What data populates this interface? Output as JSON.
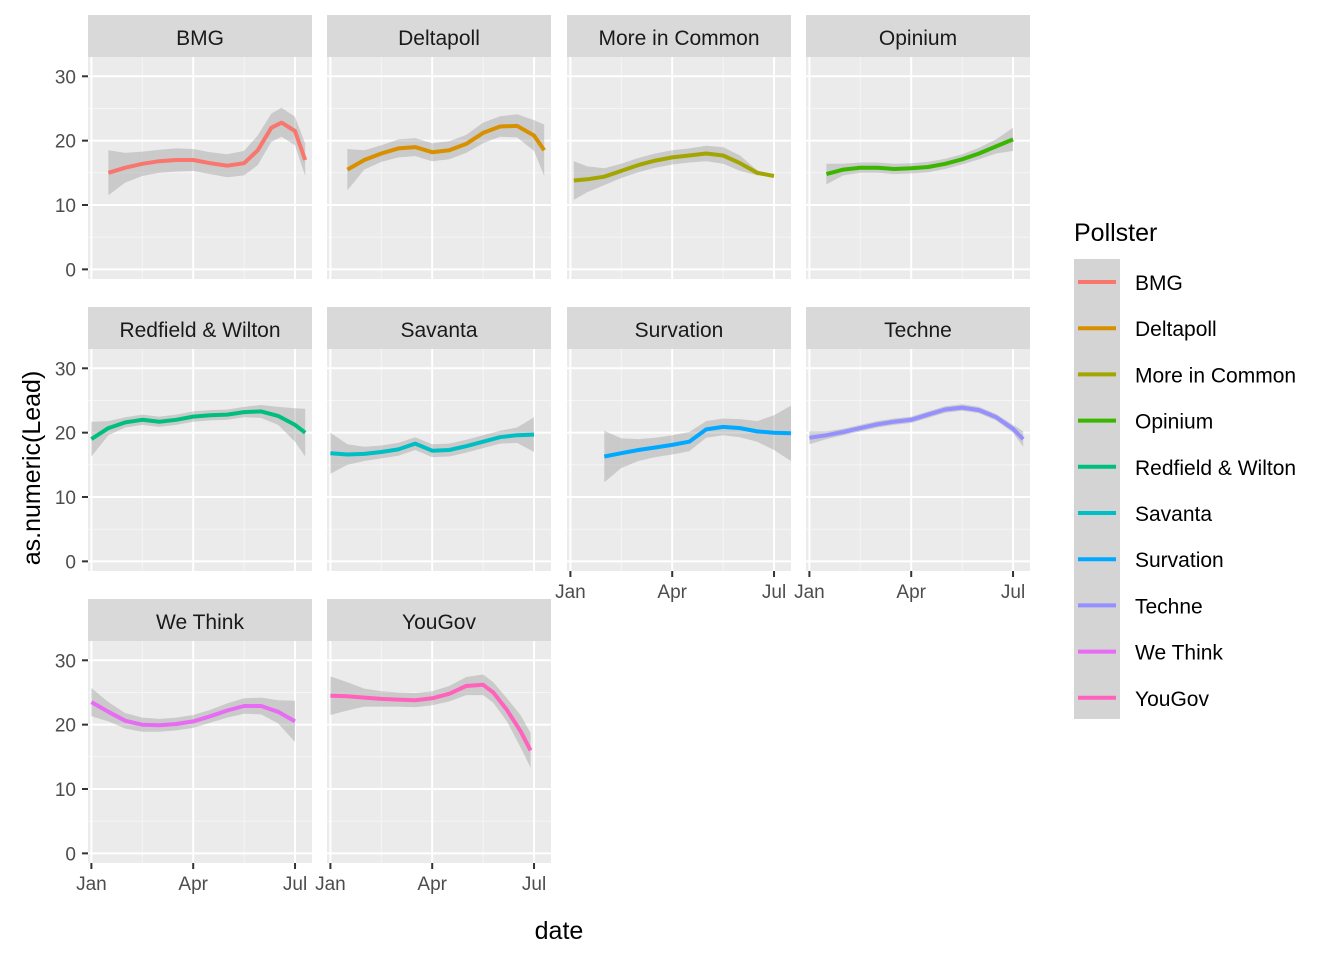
{
  "chart_data": {
    "type": "line",
    "xlabel": "date",
    "ylabel": "as.numeric(Lead)",
    "x_ticks": [
      "Jan",
      "Apr",
      "Jul"
    ],
    "y_ticks": [
      0,
      10,
      20,
      30
    ],
    "ylim": [
      -1.5,
      33
    ],
    "xlim_months": [
      0.9,
      7.5
    ],
    "grid": true,
    "legend": {
      "title": "Pollster",
      "placement": "right"
    },
    "facets_per_row": 4,
    "series": [
      {
        "name": "BMG",
        "color": "#F8766D",
        "x": [
          1.5,
          2.0,
          2.5,
          3.0,
          3.5,
          4.0,
          4.5,
          5.0,
          5.5,
          5.9,
          6.3,
          6.6,
          7.0,
          7.3
        ],
        "y": [
          15,
          15.8,
          16.4,
          16.8,
          17,
          17,
          16.5,
          16.1,
          16.5,
          18.5,
          22,
          22.8,
          21.5,
          17
        ],
        "lower": [
          11.5,
          13.5,
          14.5,
          15,
          15.2,
          15.3,
          14.8,
          14.3,
          14.6,
          16.2,
          19.8,
          20.6,
          19.3,
          14.5
        ],
        "upper": [
          18.5,
          18.1,
          18.3,
          18.6,
          18.8,
          18.7,
          18.2,
          17.9,
          18.4,
          20.8,
          24.2,
          25.1,
          23.7,
          19.5
        ]
      },
      {
        "name": "Deltapoll",
        "color": "#D89000",
        "x": [
          1.5,
          2.0,
          2.5,
          3.0,
          3.5,
          4.0,
          4.5,
          5.0,
          5.5,
          6.0,
          6.5,
          7.0,
          7.3
        ],
        "y": [
          15.5,
          17,
          18,
          18.8,
          19,
          18.2,
          18.5,
          19.5,
          21.2,
          22.2,
          22.3,
          20.8,
          18.5
        ],
        "lower": [
          12.3,
          15.5,
          16.7,
          17.4,
          17.6,
          16.8,
          17.1,
          18.1,
          19.6,
          20.6,
          20.5,
          18.4,
          14.5
        ],
        "upper": [
          18.7,
          18.5,
          19.3,
          20.2,
          20.4,
          19.6,
          19.9,
          20.9,
          22.8,
          23.8,
          24.1,
          23.2,
          22.5
        ]
      },
      {
        "name": "More in Common",
        "color": "#A3A500",
        "x": [
          1.1,
          1.5,
          2.0,
          2.5,
          3.0,
          3.5,
          4.0,
          4.5,
          5.0,
          5.5,
          6.0,
          6.5,
          7.0
        ],
        "y": [
          13.8,
          14,
          14.4,
          15.3,
          16.2,
          16.9,
          17.4,
          17.7,
          18.0,
          17.7,
          16.5,
          15,
          14.5
        ],
        "lower": [
          10.8,
          12,
          13.1,
          14.2,
          15.1,
          15.8,
          16.3,
          16.6,
          16.8,
          16.4,
          15.3,
          14.6,
          14.5
        ],
        "upper": [
          16.8,
          16,
          15.7,
          16.4,
          17.3,
          18,
          18.5,
          18.8,
          19.2,
          19.0,
          17.7,
          15.4,
          14.5
        ]
      },
      {
        "name": "Opinium",
        "color": "#39B600",
        "x": [
          1.5,
          2.0,
          2.5,
          3.0,
          3.5,
          4.0,
          4.5,
          5.0,
          5.5,
          6.0,
          6.5,
          7.0
        ],
        "y": [
          14.8,
          15.5,
          15.8,
          15.8,
          15.6,
          15.7,
          15.9,
          16.4,
          17.1,
          18.0,
          19.1,
          20.2
        ],
        "lower": [
          13.2,
          14.6,
          15.0,
          15.0,
          14.8,
          14.9,
          15.1,
          15.6,
          16.3,
          17.1,
          18.0,
          18.4
        ],
        "upper": [
          16.4,
          16.4,
          16.6,
          16.6,
          16.4,
          16.5,
          16.7,
          17.2,
          17.9,
          18.9,
          20.2,
          22.0
        ]
      },
      {
        "name": "Redfield & Wilton",
        "color": "#00BF7D",
        "x": [
          1.0,
          1.5,
          2.0,
          2.5,
          3.0,
          3.5,
          4.0,
          4.5,
          5.0,
          5.5,
          6.0,
          6.5,
          7.0,
          7.3
        ],
        "y": [
          19,
          20.7,
          21.6,
          22.0,
          21.7,
          22.0,
          22.5,
          22.7,
          22.8,
          23.2,
          23.3,
          22.6,
          21.2,
          20
        ],
        "lower": [
          16.3,
          19.6,
          20.8,
          21.2,
          20.9,
          21.2,
          21.7,
          21.9,
          22.0,
          22.4,
          22.3,
          21.2,
          18.6,
          16.3
        ],
        "upper": [
          21.7,
          21.8,
          22.4,
          22.8,
          22.5,
          22.8,
          23.3,
          23.5,
          23.6,
          24.0,
          24.3,
          24.0,
          23.8,
          23.7
        ]
      },
      {
        "name": "Savanta",
        "color": "#00BFC4",
        "x": [
          1.0,
          1.5,
          2.0,
          2.5,
          3.0,
          3.5,
          4.0,
          4.5,
          5.0,
          5.5,
          6.0,
          6.5,
          7.0
        ],
        "y": [
          16.8,
          16.6,
          16.7,
          17.0,
          17.4,
          18.3,
          17.2,
          17.3,
          17.9,
          18.6,
          19.3,
          19.6,
          19.7
        ],
        "lower": [
          13.6,
          15.0,
          15.6,
          16.0,
          16.4,
          17.3,
          16.2,
          16.3,
          16.9,
          17.6,
          18.3,
          18.4,
          17.0
        ],
        "upper": [
          20.0,
          18.2,
          17.8,
          18.0,
          18.4,
          19.3,
          18.2,
          18.3,
          18.9,
          19.6,
          20.3,
          20.8,
          22.4
        ]
      },
      {
        "name": "Survation",
        "color": "#00A9FF",
        "x": [
          2.0,
          2.5,
          3.0,
          3.5,
          4.0,
          4.5,
          5.0,
          5.5,
          6.0,
          6.5,
          7.0,
          7.5
        ],
        "y": [
          16.3,
          16.8,
          17.3,
          17.7,
          18.1,
          18.6,
          20.5,
          20.9,
          20.7,
          20.2,
          20.0,
          19.9
        ],
        "lower": [
          12.3,
          14.5,
          15.6,
          16.2,
          16.6,
          17.1,
          19.2,
          19.6,
          19.3,
          18.6,
          17.3,
          15.6
        ],
        "upper": [
          20.3,
          19.1,
          19.0,
          19.2,
          19.6,
          20.1,
          21.8,
          22.2,
          22.1,
          21.8,
          22.7,
          24.2
        ]
      },
      {
        "name": "Techne",
        "color": "#9590FF",
        "x": [
          1.0,
          1.5,
          2.0,
          2.5,
          3.0,
          3.5,
          4.0,
          4.5,
          5.0,
          5.5,
          6.0,
          6.5,
          7.0,
          7.3
        ],
        "y": [
          19.2,
          19.6,
          20.1,
          20.7,
          21.3,
          21.7,
          22.0,
          22.8,
          23.6,
          23.9,
          23.5,
          22.4,
          20.6,
          19
        ],
        "lower": [
          18.2,
          19.0,
          19.6,
          20.2,
          20.8,
          21.2,
          21.5,
          22.3,
          23.1,
          23.4,
          23.0,
          21.9,
          20.0,
          17.8
        ],
        "upper": [
          20.2,
          20.2,
          20.6,
          21.2,
          21.8,
          22.2,
          22.5,
          23.3,
          24.1,
          24.4,
          24.0,
          22.9,
          21.2,
          20.2
        ]
      },
      {
        "name": "We Think",
        "color": "#E76BF3",
        "x": [
          1.0,
          1.5,
          2.0,
          2.5,
          3.0,
          3.5,
          4.0,
          4.5,
          5.0,
          5.5,
          6.0,
          6.5,
          7.0
        ],
        "y": [
          23.5,
          22.0,
          20.6,
          20.0,
          19.9,
          20.1,
          20.5,
          21.3,
          22.2,
          22.9,
          22.9,
          22.0,
          20.5
        ],
        "lower": [
          21.3,
          20.5,
          19.4,
          18.9,
          18.9,
          19.1,
          19.5,
          20.3,
          21.1,
          21.7,
          21.6,
          20.2,
          17.3
        ],
        "upper": [
          25.7,
          23.5,
          21.8,
          21.1,
          20.9,
          21.1,
          21.5,
          22.3,
          23.3,
          24.1,
          24.2,
          23.8,
          23.7
        ]
      },
      {
        "name": "YouGov",
        "color": "#FF62BC",
        "x": [
          1.0,
          1.5,
          2.0,
          2.5,
          3.0,
          3.5,
          4.0,
          4.5,
          5.0,
          5.5,
          5.8,
          6.2,
          6.6,
          6.9
        ],
        "y": [
          24.5,
          24.4,
          24.2,
          24.0,
          23.9,
          23.8,
          24.1,
          24.8,
          26.0,
          26.2,
          25.0,
          22.3,
          19.0,
          16.0
        ],
        "lower": [
          21.5,
          22.2,
          22.8,
          22.8,
          22.8,
          22.7,
          23.0,
          23.6,
          24.6,
          24.6,
          23.4,
          20.5,
          16.5,
          13.3
        ],
        "upper": [
          27.5,
          26.6,
          25.6,
          25.2,
          25.0,
          24.9,
          25.2,
          26.0,
          27.4,
          27.8,
          26.6,
          24.1,
          21.5,
          18.7
        ]
      }
    ]
  }
}
